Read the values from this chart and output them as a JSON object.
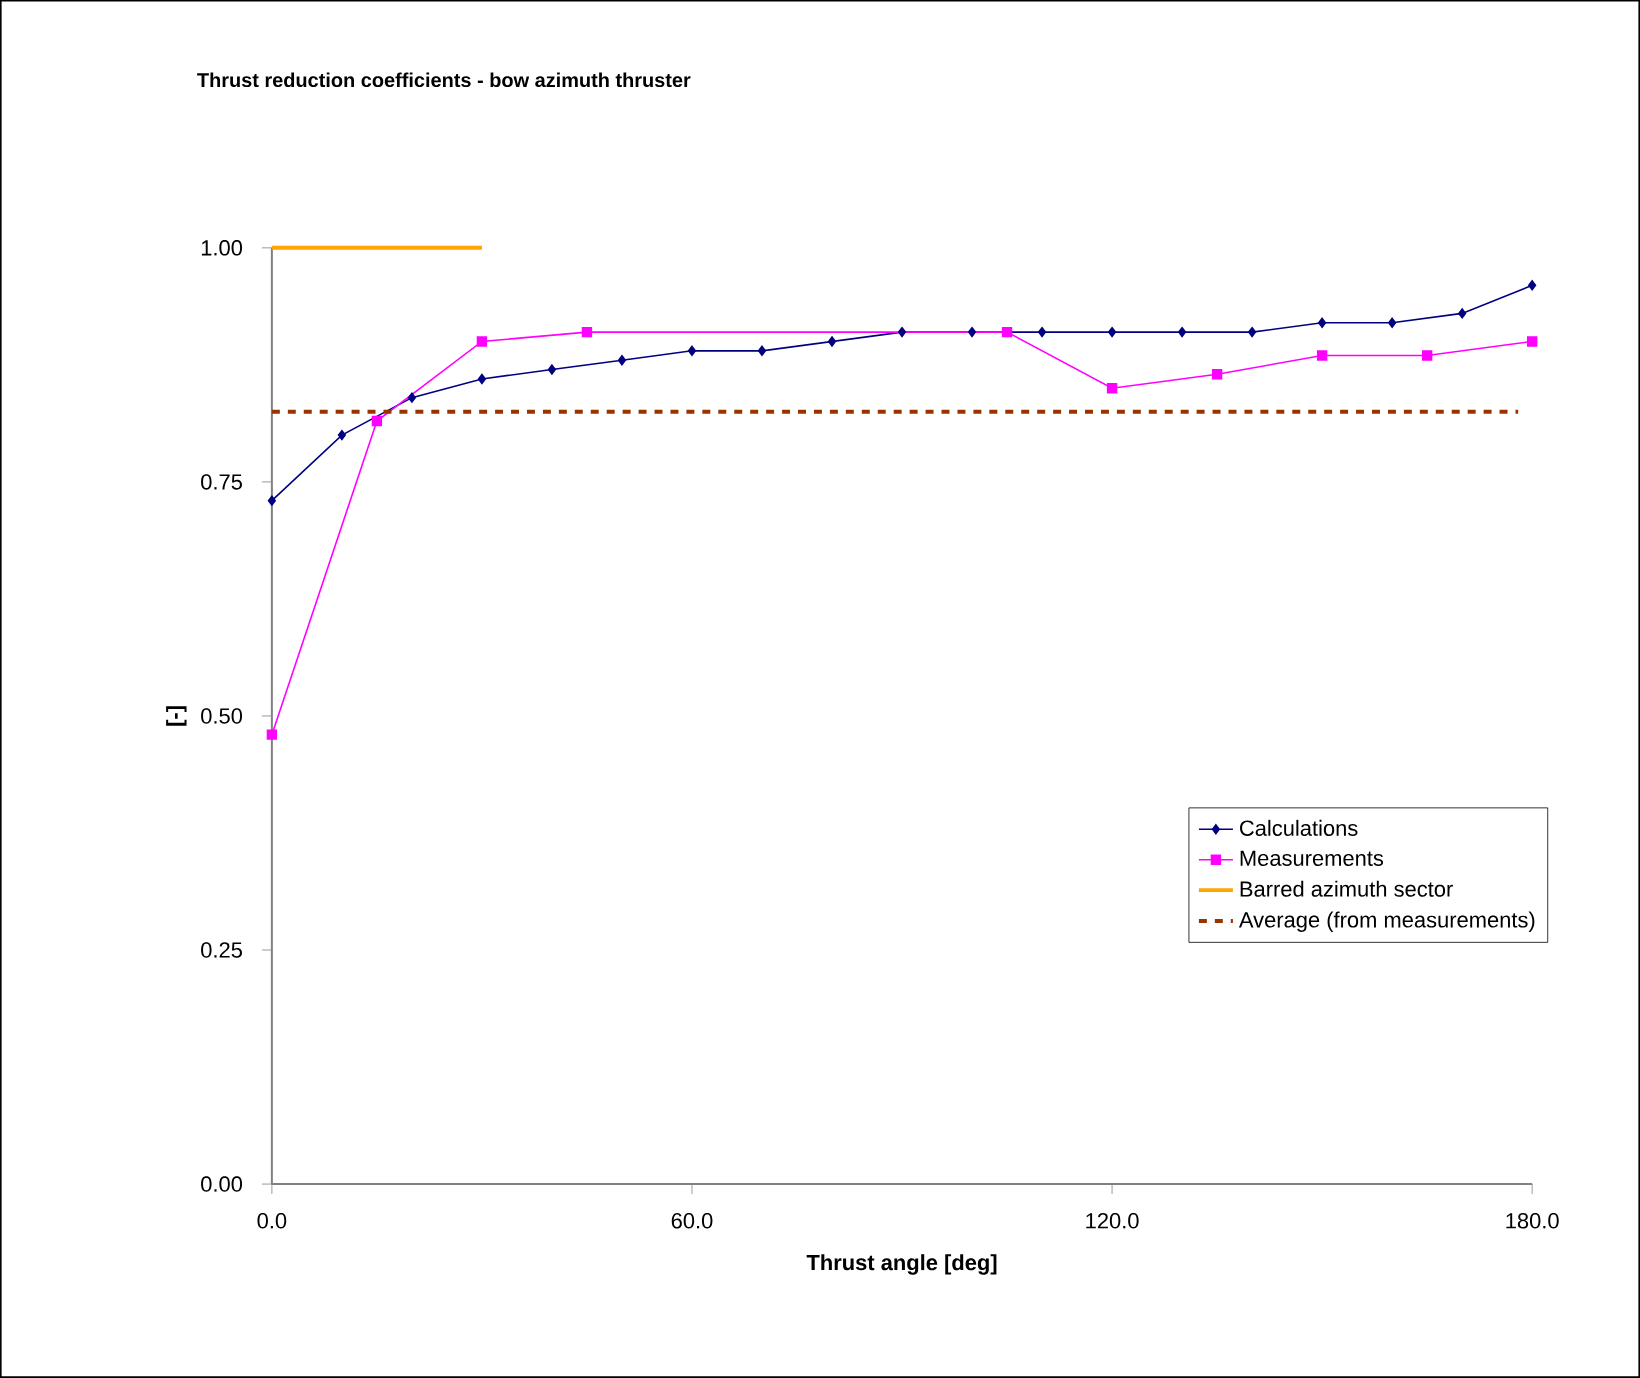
{
  "chart_data": {
    "type": "line",
    "title": "Thrust reduction coefficients - bow azimuth thruster",
    "xlabel": "Thrust angle [deg]",
    "ylabel": "[-]",
    "xlim": [
      0,
      180
    ],
    "ylim": [
      0,
      1
    ],
    "xticks": [
      {
        "value": 0,
        "label": "0.0"
      },
      {
        "value": 60,
        "label": "60.0"
      },
      {
        "value": 120,
        "label": "120.0"
      },
      {
        "value": 180,
        "label": "180.0"
      }
    ],
    "yticks": [
      {
        "value": 0,
        "label": "0.00"
      },
      {
        "value": 0.25,
        "label": "0.25"
      },
      {
        "value": 0.5,
        "label": "0.50"
      },
      {
        "value": 0.75,
        "label": "0.75"
      },
      {
        "value": 1,
        "label": "1.00"
      }
    ],
    "grid": false,
    "legend": "right",
    "series": [
      {
        "name": "Calculations",
        "color": "#000080",
        "marker": "diamond",
        "x": [
          0,
          10,
          20,
          30,
          40,
          50,
          60,
          70,
          80,
          90,
          100,
          110,
          120,
          130,
          140,
          150,
          160,
          170,
          180
        ],
        "values": [
          0.73,
          0.8,
          0.84,
          0.86,
          0.87,
          0.88,
          0.89,
          0.89,
          0.9,
          0.91,
          0.91,
          0.91,
          0.91,
          0.91,
          0.91,
          0.92,
          0.92,
          0.93,
          0.96
        ]
      },
      {
        "name": "Measurements",
        "color": "#ff00ff",
        "marker": "square",
        "x": [
          0,
          15,
          30,
          45,
          105,
          120,
          135,
          150,
          165,
          180
        ],
        "values": [
          0.48,
          0.815,
          0.9,
          0.91,
          0.91,
          0.85,
          0.865,
          0.885,
          0.885,
          0.9
        ]
      },
      {
        "name": "Barred azimuth sector",
        "color": "#ffa500",
        "marker": "none",
        "x": [
          0,
          30
        ],
        "values": [
          1,
          1
        ]
      },
      {
        "name": "Average (from measurements)",
        "color": "#993300",
        "marker": "none",
        "line_style": "dashed",
        "x": [
          0,
          178
        ],
        "values": [
          0.825,
          0.825
        ]
      }
    ]
  }
}
